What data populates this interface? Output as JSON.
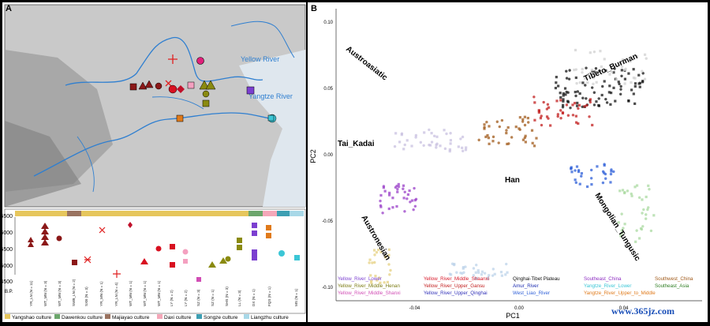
{
  "panelA": {
    "letter": "A",
    "map_labels": {
      "yellow_river": "Yellow River",
      "yangtze_river": "Yangtze River"
    },
    "timeline_bars": [
      {
        "label": "Yangshao culture",
        "color": "#e6c65c"
      },
      {
        "label": "Dawenkou culture",
        "color": "#6ca66c"
      },
      {
        "label": "Majiayao culture",
        "color": "#9a7360"
      },
      {
        "label": "Daxi culture",
        "color": "#f4a7b9"
      },
      {
        "label": "Songze culture",
        "color": "#3d9fb3"
      },
      {
        "label": "Liangzhu culture",
        "color": "#a8d8e8"
      }
    ],
    "y_axis_ticks": [
      "6500",
      "6000",
      "5500",
      "5000",
      "4500"
    ],
    "y_axis_label": "B.P.",
    "site_labels": [
      "YR_LN (N = 11)",
      "WT_MN (N = 3)",
      "WT_MN (N = 3)",
      "SWB_LN (N = 2)",
      "SXB (N = 3)",
      "YR_MN (N = 1)",
      "YR_LN (N = 4)",
      "WT_MN (N = 1)",
      "WT_MN (N = 1)",
      "WT_MN (N = 1)",
      "LY (N = 2)",
      "LY (N = 2)",
      "SZ (N = 3)",
      "SZ (N = 1)",
      "SHS (N = 3)",
      "LL (N = 3)",
      "DX (N = 1)",
      "FQS (N = 1)",
      "MS (N = 1)"
    ]
  },
  "panelB": {
    "letter": "B",
    "chart_data": {
      "type": "scatter",
      "xlabel": "PC1",
      "ylabel": "PC2",
      "x_ticks": [
        "-0.04",
        "0.00",
        "0.04"
      ],
      "y_ticks": [
        "0.10",
        "0.05",
        "0.00",
        "-0.05",
        "-0.10"
      ],
      "xlim": [
        -0.07,
        0.07
      ],
      "ylim": [
        -0.11,
        0.11
      ],
      "group_labels": [
        "Austroasiatic",
        "Tibeto_Burman",
        "Tai_Kadai",
        "Han",
        "Austronesian",
        "Mongolian_Tungusic"
      ],
      "legend": [
        {
          "label": "Yellow_River_Lower",
          "color": "#7b3fd0"
        },
        {
          "label": "Yellow_River_Middle_Shaanxi",
          "color": "#d8192a"
        },
        {
          "label": "Qinghai-Tibet Plateau",
          "color": "#111111"
        },
        {
          "label": "Southeast_China",
          "color": "#8e2ec2"
        },
        {
          "label": "Southwest_China",
          "color": "#a05a1a"
        },
        {
          "label": "Yellow_River_Middle_Henan",
          "color": "#7a7a10"
        },
        {
          "label": "Yellow_River_Upper_Gansu",
          "color": "#c21d1d"
        },
        {
          "label": "Amur_River",
          "color": "#1a2bb0"
        },
        {
          "label": "Yangtze_River_Lower",
          "color": "#3bc6d6"
        },
        {
          "label": "Southeast_Asia",
          "color": "#2e7d22"
        },
        {
          "label": "Yellow_River_Middle_Shanxi",
          "color": "#d14db5"
        },
        {
          "label": "Yellow_River_Upper_Qinghai",
          "color": "#3030b8"
        },
        {
          "label": "West_Liao_River",
          "color": "#2d5fd8"
        },
        {
          "label": "Yangtze_River_Upper_to_Middle",
          "color": "#e07a1a"
        }
      ]
    }
  },
  "watermark": "www.365jz.com"
}
